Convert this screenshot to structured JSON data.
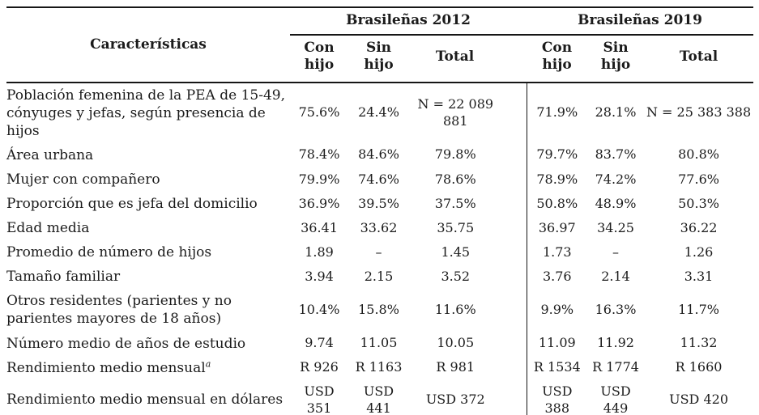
{
  "table": {
    "header": {
      "caracteristicas": "Características",
      "groups": [
        {
          "label": "Brasileñas 2012"
        },
        {
          "label": "Brasileñas 2019"
        }
      ],
      "subcolumns": [
        "Con\nhijo",
        "Sin\nhijo",
        "Total",
        "Con\nhijo",
        "Sin\nhijo",
        "Total"
      ]
    },
    "rows": [
      {
        "label": "Población femenina de la PEA de 15-49, cónyuges y jefas, según presencia de hijos",
        "values": [
          "75.6%",
          "24.4%",
          "N = 22 089 881",
          "71.9%",
          "28.1%",
          "N = 25 383 388"
        ]
      },
      {
        "label": "Área urbana",
        "values": [
          "78.4%",
          "84.6%",
          "79.8%",
          "79.7%",
          "83.7%",
          "80.8%"
        ]
      },
      {
        "label": "Mujer con compañero",
        "values": [
          "79.9%",
          "74.6%",
          "78.6%",
          "78.9%",
          "74.2%",
          "77.6%"
        ]
      },
      {
        "label": "Proporción que es jefa del domicilio",
        "values": [
          "36.9%",
          "39.5%",
          "37.5%",
          "50.8%",
          "48.9%",
          "50.3%"
        ]
      },
      {
        "label": "Edad media",
        "values": [
          "36.41",
          "33.62",
          "35.75",
          "36.97",
          "34.25",
          "36.22"
        ]
      },
      {
        "label": "Promedio de número de hijos",
        "values": [
          "1.89",
          "–",
          "1.45",
          "1.73",
          "–",
          "1.26"
        ]
      },
      {
        "label": "Tamaño familiar",
        "values": [
          "3.94",
          "2.15",
          "3.52",
          "3.76",
          "2.14",
          "3.31"
        ]
      },
      {
        "label": "Otros residentes (parientes y no parientes mayores de 18 años)",
        "values": [
          "10.4%",
          "15.8%",
          "11.6%",
          "9.9%",
          "16.3%",
          "11.7%"
        ]
      },
      {
        "label": "Número medio de años de estudio",
        "values": [
          "9.74",
          "11.05",
          "10.05",
          "11.09",
          "11.92",
          "11.32"
        ]
      },
      {
        "label": "Rendimiento medio mensual",
        "label_superscript": "a",
        "values": [
          "R 926",
          "R 1163",
          "R 981",
          "R 1534",
          "R 1774",
          "R 1660"
        ]
      },
      {
        "label": "Rendimiento medio mensual en dólares",
        "values": [
          "USD 351",
          "USD 441",
          "USD 372",
          "USD 388",
          "USD 449",
          "USD 420"
        ]
      }
    ]
  }
}
